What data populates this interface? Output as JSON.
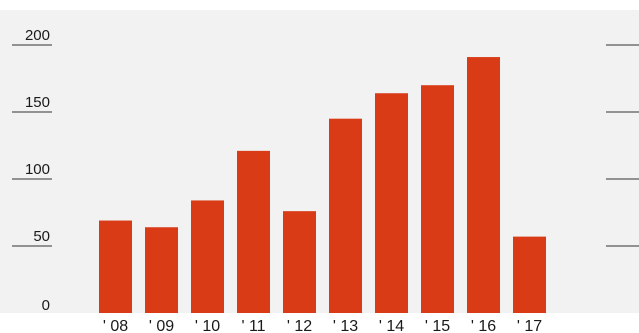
{
  "colors": {
    "background": "#f2f2f2",
    "bar": "#d93b17",
    "gridline": "#333333",
    "text": "#1a1a1a"
  },
  "chart_data": {
    "type": "bar",
    "title": "",
    "xlabel": "",
    "ylabel": "",
    "categories": [
      "' 08",
      "' 09",
      "' 10",
      "' 11",
      "' 12",
      "' 13",
      "' 14",
      "' 15",
      "' 16",
      "' 17"
    ],
    "values": [
      69,
      64,
      84,
      121,
      76,
      145,
      164,
      170,
      191,
      57
    ],
    "ylim": [
      0,
      200
    ],
    "yticks": [
      0,
      50,
      100,
      150,
      200
    ],
    "ytick_labels": [
      "0",
      "50",
      "100",
      "150",
      "200"
    ],
    "grid": "short tick marks at left and right edges",
    "legend": "none"
  }
}
